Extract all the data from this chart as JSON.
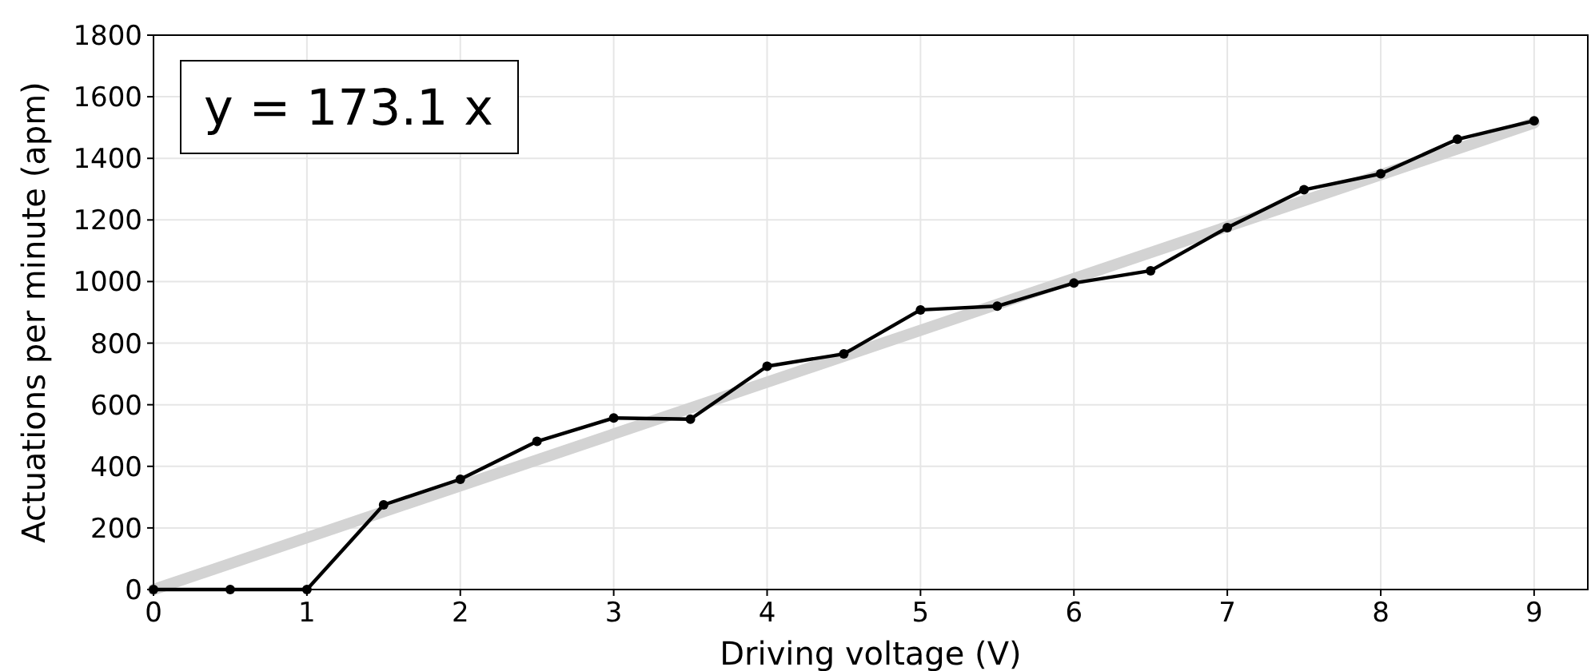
{
  "chart_data": {
    "type": "line",
    "xlabel": "Driving voltage (V)",
    "ylabel": "Actuations per minute (apm)",
    "x": [
      0,
      0.5,
      1,
      1.5,
      2,
      2.5,
      3,
      3.5,
      4,
      4.5,
      5,
      5.5,
      6,
      6.5,
      7,
      7.5,
      8,
      8.5,
      9
    ],
    "series": [
      {
        "color": "#d3d3d3",
        "x": [
          0,
          9
        ],
        "values": [
          0,
          1515
        ],
        "marker": "none"
      },
      {
        "color": "#000000",
        "values": [
          0,
          0,
          0,
          275,
          358,
          481,
          557,
          553,
          725,
          765,
          908,
          920,
          995,
          1035,
          1175,
          1298,
          1350,
          1462,
          1522
        ],
        "marker": "circle"
      }
    ],
    "xlim": [
      0,
      9.35
    ],
    "xticks": [
      0,
      1,
      2,
      3,
      4,
      5,
      6,
      7,
      8,
      9
    ],
    "ylim": [
      0,
      1800
    ],
    "yticks": [
      0,
      200,
      400,
      600,
      800,
      1000,
      1200,
      1400,
      1600,
      1800
    ],
    "grid": true,
    "line_style": "solid",
    "annotations": [
      "y = 173.1 x"
    ]
  }
}
